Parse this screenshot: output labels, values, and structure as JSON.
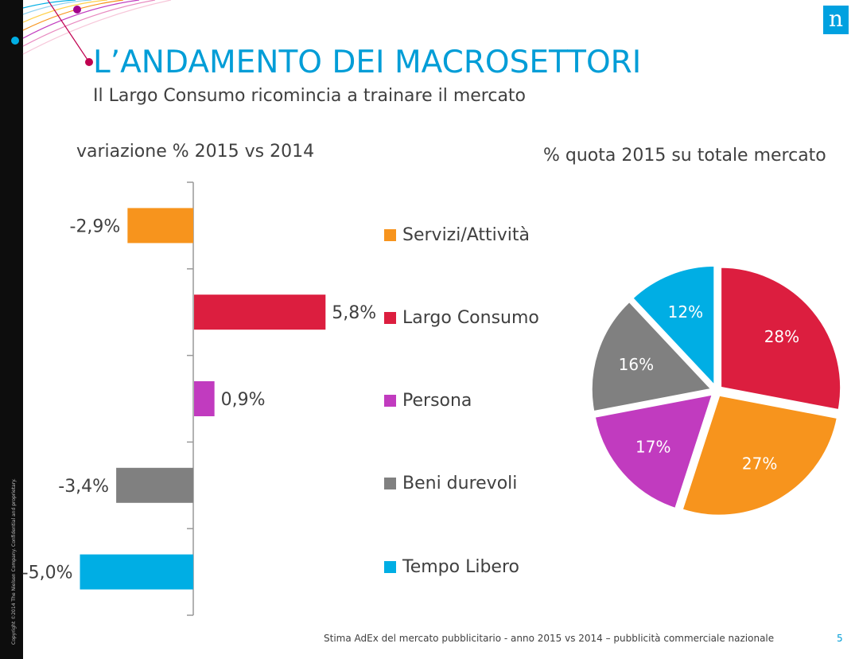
{
  "header": {
    "title": "L’ANDAMENTO DEI MACROSETTORI",
    "subtitle": "Il Largo Consumo ricomincia a trainare il mercato",
    "logo_letter": "n"
  },
  "sidebar": {
    "copyright": "Copyright ©2014 The Nielsen Company. Confidential and proprietary."
  },
  "footer": {
    "source": "Stima AdEx del mercato pubblicitario  - anno 2015 vs 2014 – pubblicità commerciale nazionale",
    "page_number": "5"
  },
  "colors": {
    "accent": "#009dd7",
    "servizi": "#f7941d",
    "largo_consumo": "#dc1e3f",
    "persona": "#c13bbf",
    "beni_durevoli": "#808080",
    "tempo_libero": "#00aee4"
  },
  "legend": [
    {
      "label": "Servizi/Attività",
      "color": "#f7941d"
    },
    {
      "label": "Largo Consumo",
      "color": "#dc1e3f"
    },
    {
      "label": "Persona",
      "color": "#c13bbf"
    },
    {
      "label": "Beni durevoli",
      "color": "#808080"
    },
    {
      "label": "Tempo Libero",
      "color": "#00aee4"
    }
  ],
  "chart_data": [
    {
      "type": "bar",
      "orientation": "horizontal",
      "title": "variazione % 2015 vs 2014",
      "categories": [
        "Servizi/Attività",
        "Largo Consumo",
        "Persona",
        "Beni durevoli",
        "Tempo Libero"
      ],
      "values": [
        -2.9,
        5.8,
        0.9,
        -3.4,
        -5.0
      ],
      "data_labels": [
        "-2,9%",
        "5,8%",
        "0,9%",
        "-3,4%",
        "-5,0%"
      ],
      "colors": [
        "#f7941d",
        "#dc1e3f",
        "#c13bbf",
        "#808080",
        "#00aee4"
      ],
      "xlim": [
        -5.0,
        5.8
      ],
      "grid": false,
      "legend_position": "right"
    },
    {
      "type": "pie",
      "title": "% quota 2015 su totale mercato",
      "categories": [
        "Largo Consumo",
        "Servizi/Attività",
        "Persona",
        "Beni durevoli",
        "Tempo Libero"
      ],
      "values": [
        28,
        27,
        17,
        16,
        12
      ],
      "data_labels": [
        "28%",
        "27%",
        "17%",
        "16%",
        "12%"
      ],
      "colors": [
        "#dc1e3f",
        "#f7941d",
        "#c13bbf",
        "#808080",
        "#00aee4"
      ],
      "start_angle_deg": 0,
      "exploded": true
    }
  ]
}
